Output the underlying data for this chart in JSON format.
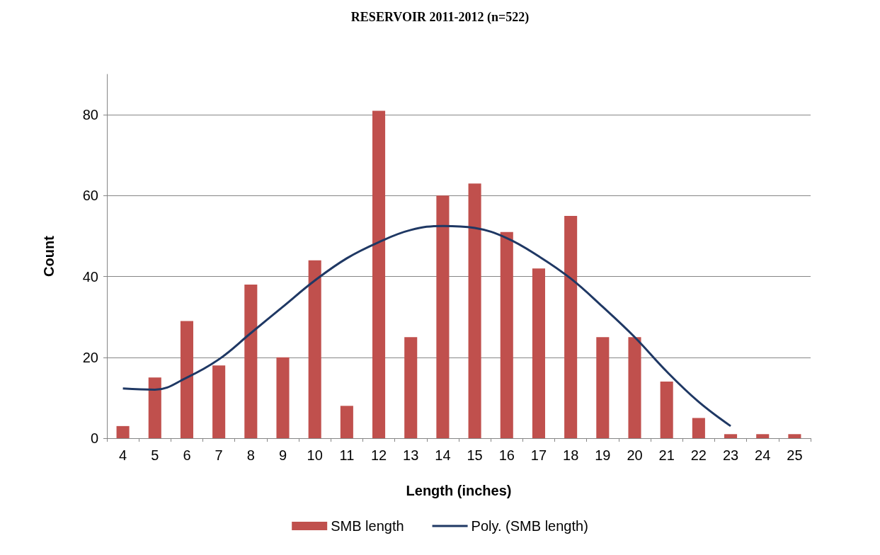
{
  "chart_data": {
    "type": "bar",
    "title": "RESERVOIR 2011-2012 (n=522)",
    "xlabel": "Length (inches)",
    "ylabel": "Count",
    "categories": [
      "4",
      "5",
      "6",
      "7",
      "8",
      "9",
      "10",
      "11",
      "12",
      "13",
      "14",
      "15",
      "16",
      "17",
      "18",
      "19",
      "20",
      "21",
      "22",
      "23",
      "24",
      "25"
    ],
    "series": [
      {
        "name": "SMB length",
        "color": "#c0504d",
        "values": [
          3,
          15,
          29,
          18,
          38,
          20,
          44,
          8,
          81,
          25,
          60,
          63,
          51,
          42,
          55,
          25,
          25,
          14,
          5,
          1,
          1,
          1
        ]
      },
      {
        "name": "Poly. (SMB length)",
        "type": "line",
        "color": "#1f3864",
        "values": [
          12.3,
          12,
          15,
          19.5,
          26,
          32.5,
          39,
          44.5,
          48.5,
          51.5,
          52.5,
          52,
          49.5,
          45,
          39.5,
          32.5,
          25,
          16.5,
          9,
          3,
          null,
          null
        ]
      }
    ],
    "ylim": [
      0,
      90
    ],
    "yticks": [
      0,
      20,
      40,
      60,
      80
    ],
    "grid": "y",
    "legend": "bottom",
    "marker": "none"
  }
}
